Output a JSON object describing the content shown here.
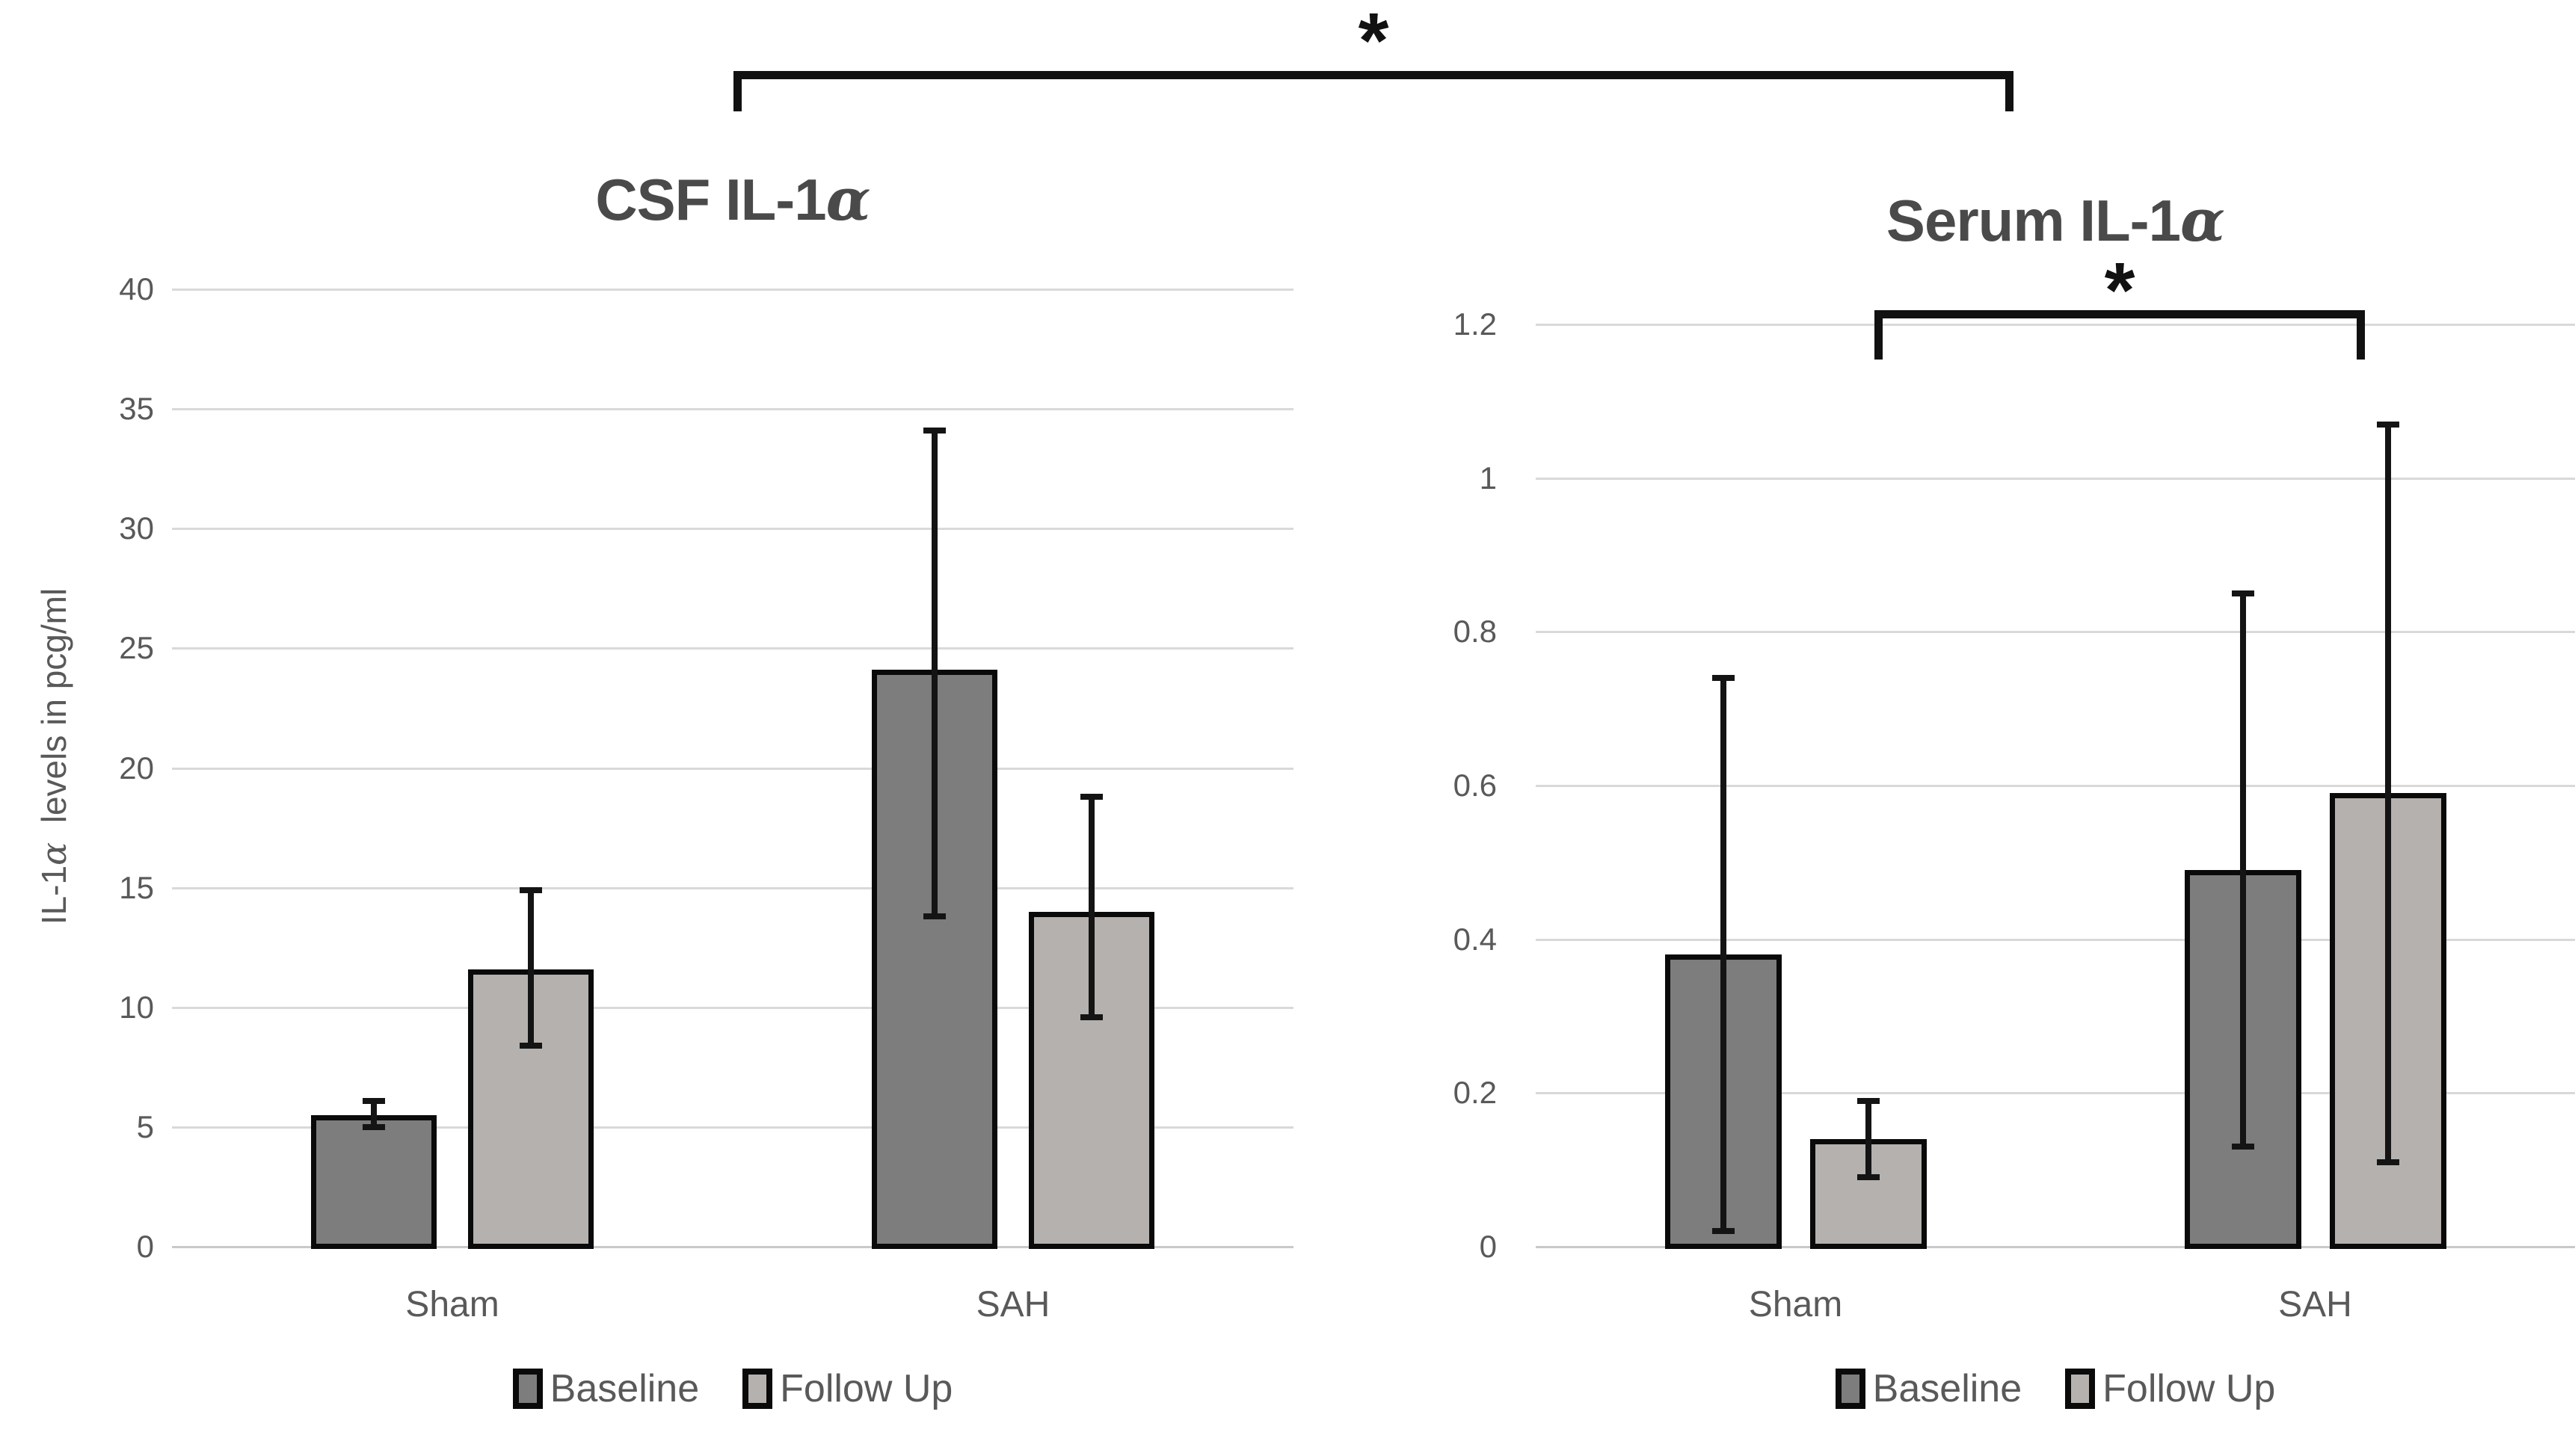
{
  "figure": {
    "background": "#ffffff",
    "kind": "grouped bar charts with error bars"
  },
  "colors": {
    "baseline_bar": "#7d7d7d",
    "followup_bar": "#b5b1ae",
    "bar_border": "#0a0a0a",
    "gridline": "#d9d9d9",
    "error_bar": "#141414",
    "axis_text": "#595959",
    "title_text": "#4a4a4a"
  },
  "significance_markers": [
    {
      "symbol": "*",
      "connects": [
        "CSF IL-1α",
        "Serum IL-1α"
      ]
    },
    {
      "symbol": "*",
      "connects": [
        "Serum Sham Follow Up",
        "Serum SAH Follow Up"
      ]
    }
  ],
  "chart_data": [
    {
      "type": "bar",
      "title": "CSF IL-1α",
      "ylabel": "IL-1α  levels in pcg/ml",
      "xlabel": "",
      "categories": [
        "Sham",
        "SAH"
      ],
      "series": [
        {
          "name": "Baseline",
          "color": "#7d7d7d",
          "values": [
            5.5,
            24.1
          ],
          "error_low": [
            5.0,
            13.8
          ],
          "error_high": [
            6.1,
            34.1
          ]
        },
        {
          "name": "Follow Up",
          "color": "#b5b1ae",
          "values": [
            11.6,
            14.0
          ],
          "error_low": [
            8.4,
            9.6
          ],
          "error_high": [
            14.9,
            18.8
          ]
        }
      ],
      "ylim": [
        0,
        40
      ],
      "ytick_step": 5,
      "grid": true,
      "legend_position": "bottom"
    },
    {
      "type": "bar",
      "title": "Serum IL-1α",
      "ylabel": "IL-1α  levels in pcg/ml",
      "xlabel": "",
      "categories": [
        "Sham",
        "SAH"
      ],
      "series": [
        {
          "name": "Baseline",
          "color": "#7d7d7d",
          "values": [
            0.38,
            0.49
          ],
          "error_low": [
            0.02,
            0.13
          ],
          "error_high": [
            0.74,
            0.85
          ]
        },
        {
          "name": "Follow Up",
          "color": "#b5b1ae",
          "values": [
            0.14,
            0.59
          ],
          "error_low": [
            0.09,
            0.11
          ],
          "error_high": [
            0.19,
            1.07
          ]
        }
      ],
      "ylim": [
        0,
        1.2
      ],
      "ytick_step": 0.2,
      "grid": true,
      "legend_position": "bottom"
    }
  ]
}
